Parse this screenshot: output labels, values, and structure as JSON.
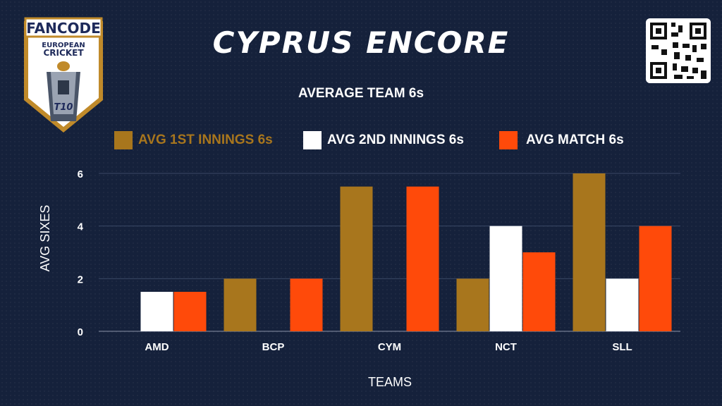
{
  "header": {
    "title": "CYPRUS ENCORE",
    "subtitle": "AVERAGE TEAM 6s",
    "logo_text": [
      "FANCODE",
      "EUROPEAN",
      "CRICKET",
      "T10"
    ]
  },
  "colors": {
    "background": "#15213b",
    "series_1": "#a8761d",
    "series_2": "#ffffff",
    "series_3": "#ff4a0a"
  },
  "chart_data": {
    "type": "bar",
    "categories": [
      "AMD",
      "BCP",
      "CYM",
      "NCT",
      "SLL"
    ],
    "series": [
      {
        "name": "AVG 1ST INNINGS 6s",
        "values": [
          0,
          2,
          5.5,
          2,
          6
        ],
        "color": "#a8761d"
      },
      {
        "name": "AVG 2ND INNINGS 6s",
        "values": [
          1.5,
          0,
          0,
          4,
          2
        ],
        "color": "#ffffff"
      },
      {
        "name": "AVG MATCH 6s",
        "values": [
          1.5,
          2,
          5.5,
          3,
          4
        ],
        "color": "#ff4a0a"
      }
    ],
    "xlabel": "TEAMS",
    "ylabel": "AVG SIXES",
    "ylim": [
      0,
      6
    ],
    "yticks": [
      0,
      2,
      4,
      6
    ],
    "grid": true,
    "legend": "top"
  }
}
